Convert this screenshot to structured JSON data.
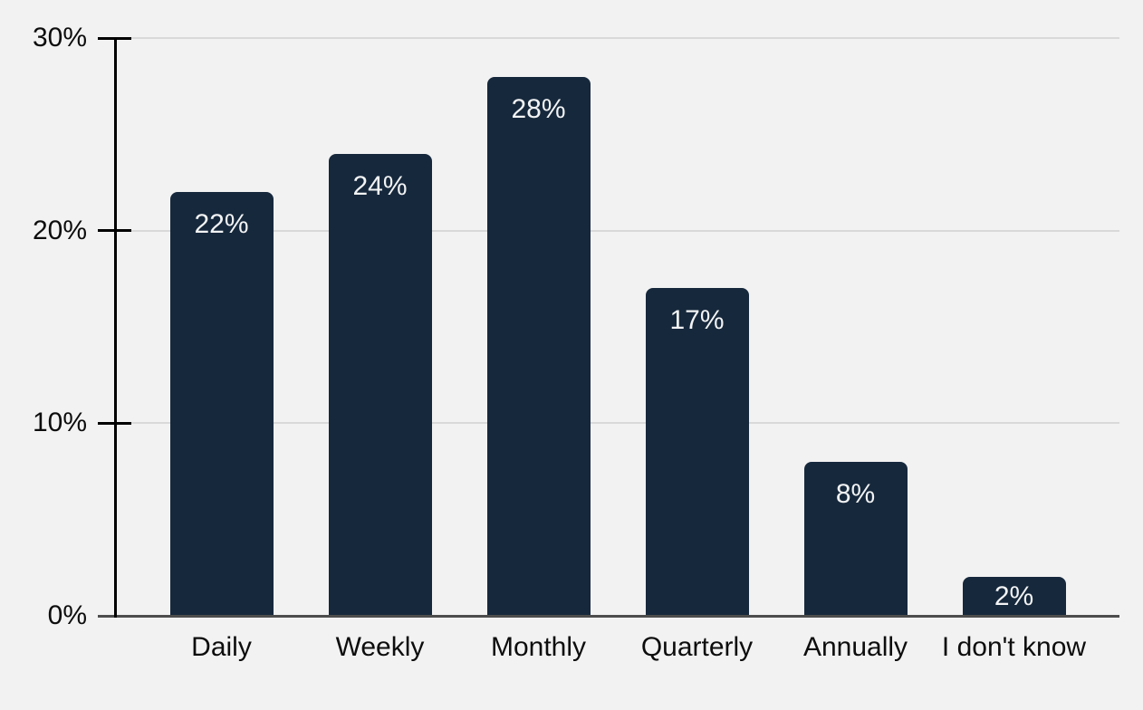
{
  "chart_data": {
    "type": "bar",
    "categories": [
      "Daily",
      "Weekly",
      "Monthly",
      "Quarterly",
      "Annually",
      "I don't know"
    ],
    "values": [
      22,
      24,
      28,
      17,
      8,
      2
    ],
    "value_labels": [
      "22%",
      "24%",
      "28%",
      "17%",
      "8%",
      "2%"
    ],
    "title": "",
    "xlabel": "",
    "ylabel": "",
    "ylim": [
      0,
      30
    ],
    "yticks": [
      0,
      10,
      20,
      30
    ],
    "ytick_labels": [
      "0%",
      "10%",
      "20%",
      "30%"
    ],
    "grid": true,
    "legend_position": "none",
    "colors": {
      "background": "#f2f2f2",
      "bar": "#16283c",
      "gridline": "#d9d9d9",
      "axis": "#000000",
      "baseline": "#4d4d4d",
      "tick_label": "#0d0d0d",
      "bar_label": "#f2f3f4"
    }
  }
}
